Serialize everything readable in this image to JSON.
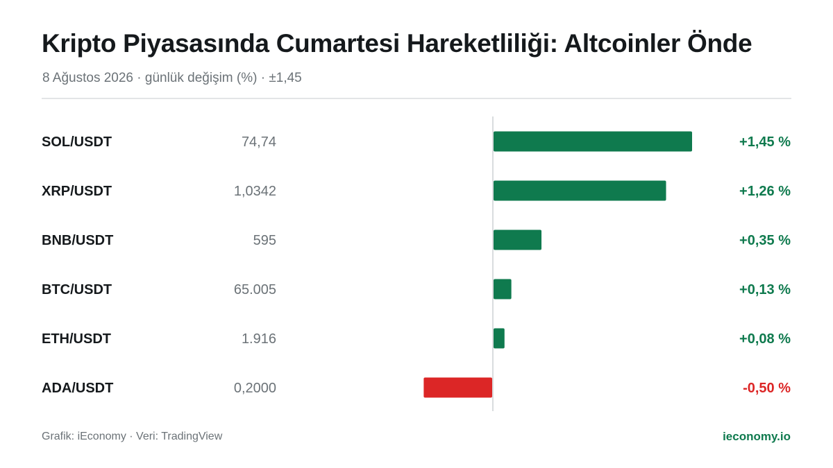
{
  "header": {
    "title": "Kripto Piyasasında Cumartesi Hareketliliği: Altcoinler Önde",
    "subtitle": "8 Ağustos 2026 · günlük değişim (%) · ±1,45"
  },
  "footer": {
    "source": "Grafik: iEconomy · Veri: TradingView",
    "brand": "ieconomy.io"
  },
  "colors": {
    "positive": "#0f7a4e",
    "negative": "#dc2626",
    "label": "#15191c",
    "price": "#6b7277",
    "axis": "#d9dcde"
  },
  "chart_data": {
    "type": "bar",
    "orientation": "horizontal",
    "categories": [
      "SOL/USDT",
      "XRP/USDT",
      "BNB/USDT",
      "BTC/USDT",
      "ETH/USDT",
      "ADA/USDT"
    ],
    "prices": [
      "74,74",
      "1,0342",
      "595",
      "65.005",
      "1.916",
      "0,2000"
    ],
    "values": [
      1.45,
      1.26,
      0.35,
      0.13,
      0.08,
      -0.5
    ],
    "value_labels": [
      "+1,45 %",
      "+1,26 %",
      "+0,35 %",
      "+0,13 %",
      "+0,08 %",
      "-0,50 %"
    ],
    "xlim": [
      -1.45,
      1.45
    ],
    "grid": false,
    "legend": "none"
  }
}
